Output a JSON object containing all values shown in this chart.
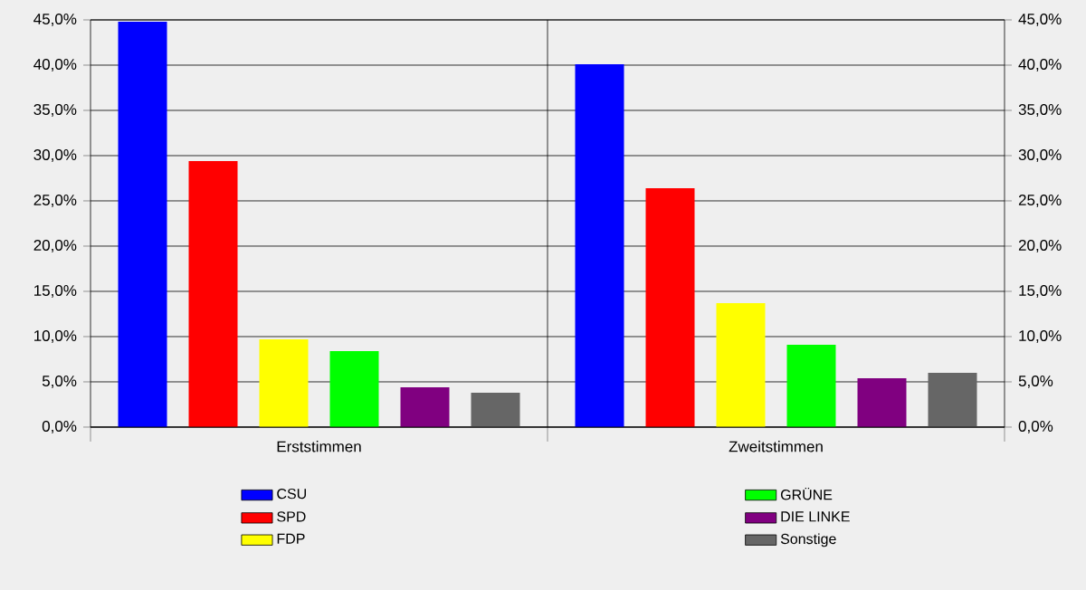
{
  "chart_data": {
    "type": "bar",
    "categories": [
      "Erststimmen",
      "Zweitstimmen"
    ],
    "series": [
      {
        "name": "CSU",
        "color": "#0000ff",
        "values": [
          44.8,
          40.1
        ]
      },
      {
        "name": "SPD",
        "color": "#ff0000",
        "values": [
          29.4,
          26.4
        ]
      },
      {
        "name": "FDP",
        "color": "#ffff00",
        "values": [
          9.7,
          13.7
        ]
      },
      {
        "name": "GRÜNE",
        "color": "#00ff00",
        "values": [
          8.4,
          9.1
        ]
      },
      {
        "name": "DIE LINKE",
        "color": "#800080",
        "values": [
          4.4,
          5.4
        ]
      },
      {
        "name": "Sonstige",
        "color": "#666666",
        "values": [
          3.8,
          6.0
        ]
      }
    ],
    "ylim": [
      0,
      45
    ],
    "yticks": [
      {
        "value": 0,
        "label": "0,0%"
      },
      {
        "value": 5,
        "label": "5,0%"
      },
      {
        "value": 10,
        "label": "10,0%"
      },
      {
        "value": 15,
        "label": "15,0%"
      },
      {
        "value": 20,
        "label": "20,0%"
      },
      {
        "value": 25,
        "label": "25,0%"
      },
      {
        "value": 30,
        "label": "30,0%"
      },
      {
        "value": 35,
        "label": "35,0%"
      },
      {
        "value": 40,
        "label": "40,0%"
      },
      {
        "value": 45,
        "label": "45,0%"
      }
    ],
    "y2lim": [
      0,
      45
    ],
    "y2ticks": [
      {
        "value": 0,
        "label": "0,0%"
      },
      {
        "value": 5,
        "label": "5,0%"
      },
      {
        "value": 10,
        "label": "10,0%"
      },
      {
        "value": 15,
        "label": "15,0%"
      },
      {
        "value": 20,
        "label": "20,0%"
      },
      {
        "value": 25,
        "label": "25,0%"
      },
      {
        "value": 30,
        "label": "30,0%"
      },
      {
        "value": 35,
        "label": "35,0%"
      },
      {
        "value": 40,
        "label": "40,0%"
      },
      {
        "value": 45,
        "label": "45,0%"
      }
    ],
    "grid": "y",
    "legend": "bottom"
  }
}
